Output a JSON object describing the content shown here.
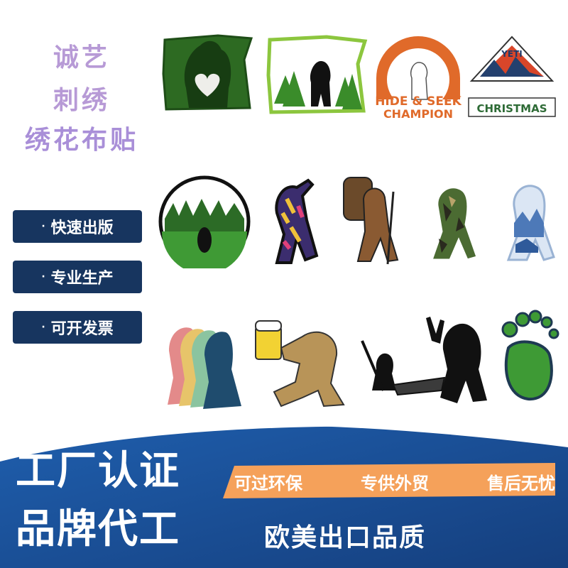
{
  "title": {
    "line1": "诚艺",
    "line2": "刺绣",
    "line3": "绣花布贴"
  },
  "features": [
    {
      "dot": "·",
      "label": "快速出版"
    },
    {
      "dot": "·",
      "label": "专业生产"
    },
    {
      "dot": "·",
      "label": "可开发票"
    }
  ],
  "patches": {
    "hide_seek_line1": "HIDE & SEEK",
    "hide_seek_line2": "CHAMPION",
    "yeti": "YETI",
    "christmas": "CHRISTMAS"
  },
  "banner": {
    "big1": "工厂认证",
    "big2": "品牌代工",
    "orange_items": [
      "可过环保",
      "专供外贸",
      "售后无忧"
    ],
    "export": "欧美出口品质"
  },
  "colors": {
    "navy": "#17355f",
    "orange": "#f5a15a",
    "title": "#b79ad6",
    "blue": "#1f5fae"
  }
}
